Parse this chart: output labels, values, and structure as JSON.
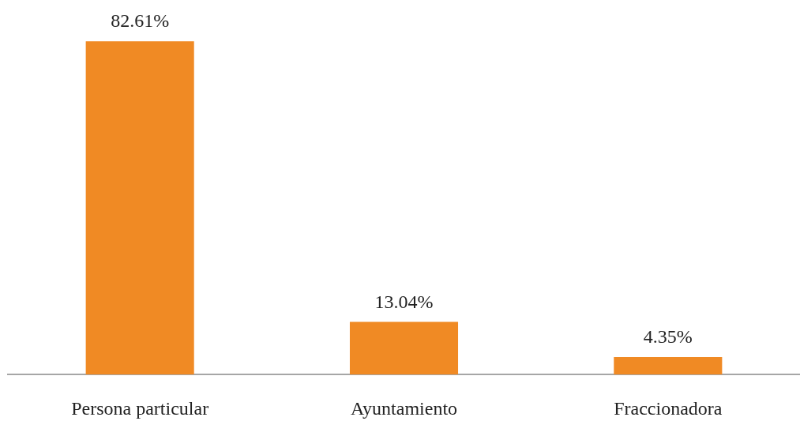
{
  "chart_data": {
    "type": "bar",
    "categories": [
      "Persona particular",
      "Ayuntamiento",
      "Fraccionadora"
    ],
    "values": [
      82.61,
      13.04,
      4.35
    ],
    "value_labels": [
      "82.61%",
      "13.04%",
      "4.35%"
    ],
    "color": "#f08a24"
  }
}
